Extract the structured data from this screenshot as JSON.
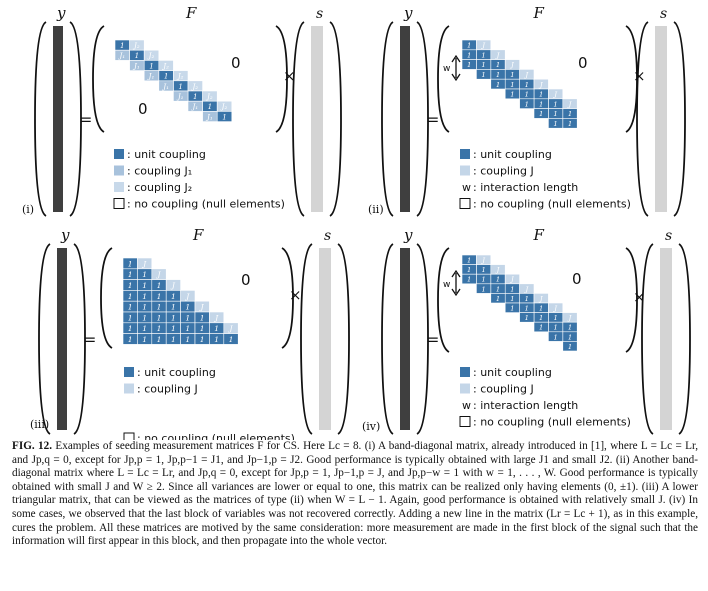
{
  "figure": {
    "panels": [
      {
        "id": "i",
        "panel_label": "(i)",
        "labels": {
          "y": "y",
          "F": "F",
          "s": "s",
          "zero_upper": "0",
          "zero_lower": "0",
          "equals": "=",
          "times": "×"
        },
        "matrix": {
          "type": "band-diagonal",
          "cell_labels": {
            "unit": "1",
            "j1": "J₁",
            "j2": "J₂"
          }
        },
        "legend": [
          {
            "swatch": "unit",
            "text": ": unit coupling"
          },
          {
            "swatch": "j1",
            "text": ": coupling J₁"
          },
          {
            "swatch": "j2",
            "text": ": coupling J₂"
          },
          {
            "swatch": "none",
            "text": ": no coupling (null elements)"
          }
        ]
      },
      {
        "id": "ii",
        "panel_label": "(ii)",
        "labels": {
          "y": "y",
          "F": "F",
          "s": "s",
          "zero_upper": "0",
          "zero_lower": "",
          "equals": "=",
          "times": "×",
          "w": "w"
        },
        "matrix": {
          "type": "band-diagonal-w",
          "cell_labels": {
            "unit": "1",
            "j": "J"
          }
        },
        "legend": [
          {
            "swatch": "unit",
            "text": ": unit coupling"
          },
          {
            "swatch": "j",
            "text": ": coupling J"
          },
          {
            "swatch": "w",
            "text": ": interaction length"
          },
          {
            "swatch": "none",
            "text": ": no coupling (null elements)"
          }
        ]
      },
      {
        "id": "iii",
        "panel_label": "(iii)",
        "labels": {
          "y": "y",
          "F": "F",
          "s": "s",
          "zero_upper": "0",
          "zero_lower": "",
          "equals": "=",
          "times": "×"
        },
        "matrix": {
          "type": "lower-triangular",
          "cell_labels": {
            "unit": "1",
            "j": "J"
          }
        },
        "legend": [
          {
            "swatch": "unit",
            "text": ": unit coupling"
          },
          {
            "swatch": "j",
            "text": ": coupling J"
          },
          {
            "swatch": "none",
            "text": ": no coupling (null elements)"
          }
        ]
      },
      {
        "id": "iv",
        "panel_label": "(iv)",
        "labels": {
          "y": "y",
          "F": "F",
          "s": "s",
          "zero_upper": "0",
          "zero_lower": "",
          "equals": "=",
          "times": "×",
          "w": "w"
        },
        "matrix": {
          "type": "band-diagonal-extra-row",
          "cell_labels": {
            "unit": "1",
            "j": "J"
          }
        },
        "legend": [
          {
            "swatch": "unit",
            "text": ": unit coupling"
          },
          {
            "swatch": "j",
            "text": ": coupling J"
          },
          {
            "swatch": "w",
            "text": ": interaction length"
          },
          {
            "swatch": "none",
            "text": ": no coupling (null elements)"
          }
        ]
      }
    ]
  },
  "colors": {
    "unit": "#3a74a8",
    "j1": "#a8c2dc",
    "j2": "#c8d9ea",
    "j": "#c4d6e8",
    "y_bar": "#3f3f3f",
    "s_bar": "#d4d4d4",
    "cell_text": "#ffffff"
  },
  "caption": {
    "label": "FIG. 12.",
    "text": "Examples of seeding measurement matrices F for CS. Here Lc = 8. (i) A band-diagonal matrix, already introduced in [1], where L = Lc = Lr, and Jp,q = 0, except for Jp,p = 1, Jp,p−1 = J1, and Jp−1,p = J2. Good performance is typically obtained with large J1 and small J2. (ii) Another band-diagonal matrix where L = Lc = Lr, and Jp,q = 0, except for Jp,p = 1, Jp−1,p = J, and Jp,p−w = 1 with w = 1, . . . , W. Good performance is typically obtained with small J and W ≥ 2. Since all variances are lower or equal to one, this matrix can be realized only having elements (0, ±1). (iii) A lower triangular matrix, that can be viewed as the matrices of type (ii) when W = L − 1. Again, good performance is obtained with relatively small J. (iv) In some cases, we observed that the last block of variables was not recovered correctly. Adding a new line in the matrix (Lr = Lc + 1), as in this example, cures the problem. All these matrices are motived by the same consideration: more measurement are made in the first block of the signal such that the information will first appear in this block, and then propagate into the whole vector."
  }
}
